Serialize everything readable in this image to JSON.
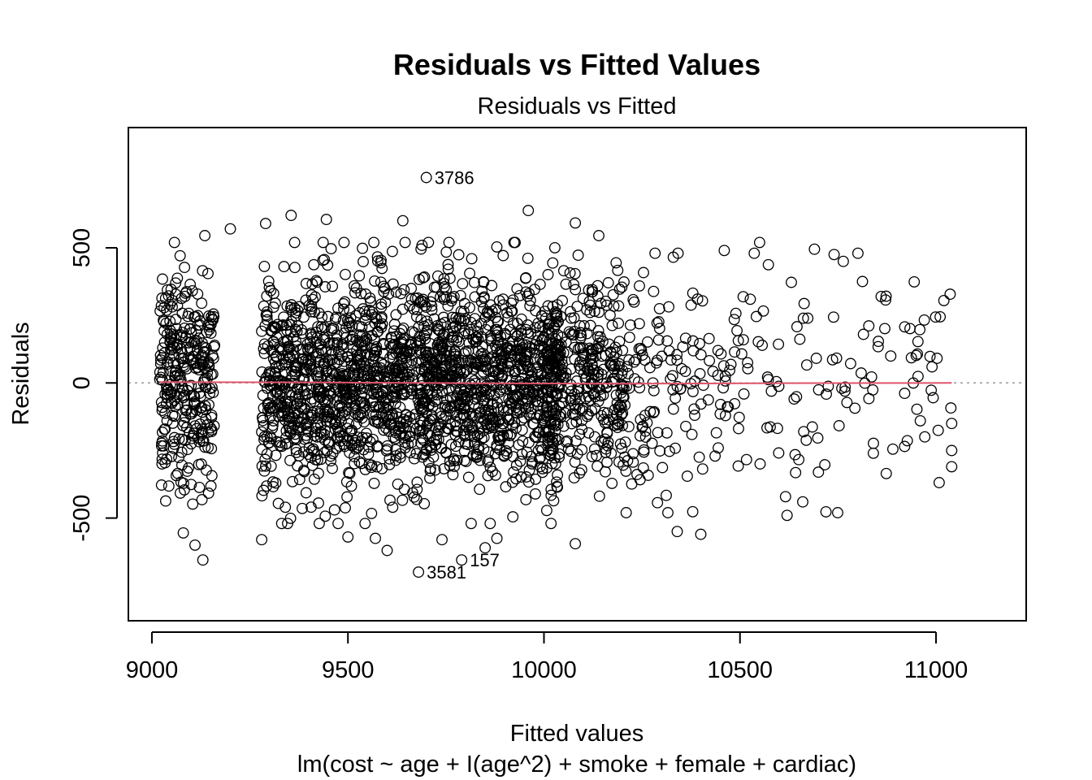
{
  "chart_data": {
    "type": "scatter",
    "title": "Residuals vs Fitted Values",
    "subtitle": "Residuals vs Fitted",
    "xlabel": "Fitted values",
    "caption": "lm(cost ~ age + I(age^2) + smoke + female + cardiac)",
    "ylabel": "Residuals",
    "xlim": [
      8940,
      11230
    ],
    "ylim": [
      -880,
      945
    ],
    "x_ticks": [
      {
        "value": 9000,
        "label": "9000"
      },
      {
        "value": 9500,
        "label": "9500"
      },
      {
        "value": 10000,
        "label": "10000"
      },
      {
        "value": 10500,
        "label": "10500"
      },
      {
        "value": 11000,
        "label": "11000"
      }
    ],
    "y_ticks": [
      {
        "value": -500,
        "label": "-500"
      },
      {
        "value": 0,
        "label": "0"
      },
      {
        "value": 500,
        "label": "500"
      }
    ],
    "reference_line": {
      "y": 0,
      "style": "dotted",
      "color": "#9a9a9a"
    },
    "smooth_line": {
      "color": "#df536b",
      "points": [
        [
          9020,
          3
        ],
        [
          9400,
          2
        ],
        [
          9800,
          -1
        ],
        [
          10200,
          -3
        ],
        [
          10600,
          -1
        ],
        [
          11040,
          0
        ]
      ]
    },
    "point_color": "#000000",
    "dense_region": {
      "x": [
        9020,
        10200
      ],
      "y_mean": 0,
      "y_sd": 190,
      "n": 2600
    },
    "sparse_region": {
      "x": [
        10200,
        11040
      ],
      "y_mean": 0,
      "y_sd": 210,
      "n": 260
    },
    "outliers": [
      {
        "x": 9700,
        "y": 760,
        "label": "3786"
      },
      {
        "x": 9680,
        "y": -700,
        "label": "3581"
      },
      {
        "x": 9790,
        "y": -655,
        "label": "157"
      }
    ],
    "extra_points": [
      [
        9355,
        620
      ],
      [
        9445,
        605
      ],
      [
        9960,
        638
      ],
      [
        9290,
        590
      ],
      [
        9640,
        600
      ],
      [
        9200,
        570
      ],
      [
        9135,
        545
      ],
      [
        10080,
        592
      ],
      [
        10140,
        545
      ],
      [
        10330,
        465
      ],
      [
        10550,
        520
      ],
      [
        10690,
        495
      ],
      [
        10740,
        475
      ],
      [
        10460,
        490
      ],
      [
        11020,
        305
      ],
      [
        10860,
        320
      ],
      [
        11040,
        -150
      ],
      [
        11040,
        -250
      ],
      [
        11040,
        -310
      ],
      [
        10960,
        -140
      ],
      [
        10620,
        -490
      ],
      [
        10400,
        -560
      ],
      [
        10340,
        -550
      ],
      [
        10080,
        -595
      ],
      [
        9880,
        -575
      ],
      [
        9850,
        -610
      ],
      [
        9130,
        -655
      ],
      [
        9110,
        -600
      ],
      [
        9080,
        -555
      ],
      [
        9280,
        -580
      ],
      [
        9500,
        -570
      ],
      [
        9570,
        -575
      ],
      [
        9740,
        -580
      ],
      [
        9600,
        -620
      ],
      [
        10700,
        -330
      ],
      [
        10920,
        -235
      ],
      [
        10890,
        -245
      ]
    ]
  }
}
